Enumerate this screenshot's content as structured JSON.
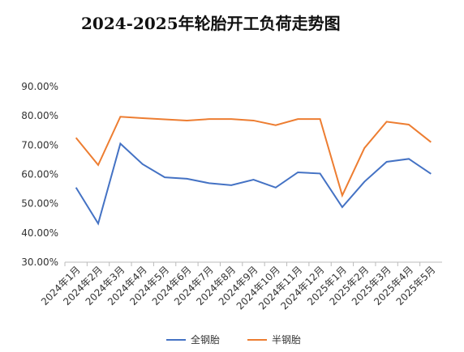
{
  "chart_data": {
    "type": "line",
    "title": "2024-2025年轮胎开工负荷走势图",
    "categories": [
      "2024年1月",
      "2024年2月",
      "2024年3月",
      "2024年4月",
      "2024年5月",
      "2024年6月",
      "2024年7月",
      "2024年8月",
      "2024年9月",
      "2024年10月",
      "2024年11月",
      "2024年12月",
      "2025年1月",
      "2025年2月",
      "2025年3月",
      "2025年4月",
      "2025年5月"
    ],
    "series": [
      {
        "name": "全钢胎",
        "color": "#4472c4",
        "values": [
          55.5,
          43.2,
          70.5,
          63.5,
          59,
          58.5,
          57,
          56.3,
          58.2,
          55.5,
          60.7,
          60.3,
          48.8,
          57.5,
          64.3,
          65.3,
          60.2
        ]
      },
      {
        "name": "半钢胎",
        "color": "#ed7d31",
        "values": [
          72.5,
          63.2,
          79.7,
          79.2,
          78.8,
          78.4,
          78.9,
          78.9,
          78.4,
          76.8,
          78.9,
          78.9,
          52.8,
          69,
          78,
          77,
          71
        ]
      }
    ],
    "ylim": [
      30,
      90
    ],
    "yticks": [
      {
        "value": 30,
        "label": "30.00%"
      },
      {
        "value": 40,
        "label": "40.00%"
      },
      {
        "value": 50,
        "label": "50.00%"
      },
      {
        "value": 60,
        "label": "60.00%"
      },
      {
        "value": 70,
        "label": "70.00%"
      },
      {
        "value": 80,
        "label": "80.00%"
      },
      {
        "value": 90,
        "label": "90.00%"
      }
    ],
    "grid": false,
    "legend": "bottom"
  }
}
